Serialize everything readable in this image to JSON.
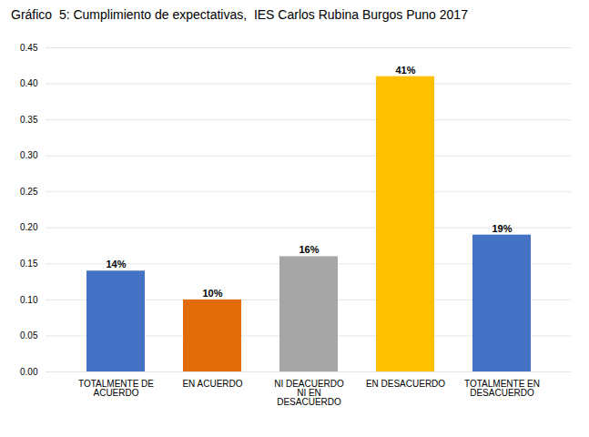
{
  "chart_data": {
    "type": "bar",
    "title": "Gráfico  5: Cumplimiento de expectativas,  IES Carlos Rubina Burgos Puno 2017",
    "categories": [
      "TOTALMENTE DE\nACUERDO",
      "EN ACUERDO",
      "NI DEACUERDO\nNI EN\nDESACUERDO",
      "EN DESACUERDO",
      "TOTALMENTE EN\nDESACUERDO"
    ],
    "values": [
      0.14,
      0.1,
      0.16,
      0.41,
      0.19
    ],
    "value_labels": [
      "14%",
      "10%",
      "16%",
      "41%",
      "19%"
    ],
    "data_labels": true,
    "colors": [
      "#4472C4",
      "#E36C0A",
      "#A6A6A6",
      "#FFC000",
      "#4472C4"
    ],
    "ylim": [
      0,
      0.45
    ],
    "yticks": [
      {
        "value": 0.0,
        "label": "0.00"
      },
      {
        "value": 0.05,
        "label": "0.05"
      },
      {
        "value": 0.1,
        "label": "0.10"
      },
      {
        "value": 0.15,
        "label": "0.15"
      },
      {
        "value": 0.2,
        "label": "0.20"
      },
      {
        "value": 0.25,
        "label": "0.25"
      },
      {
        "value": 0.3,
        "label": "0.30"
      },
      {
        "value": 0.35,
        "label": "0.35"
      },
      {
        "value": 0.4,
        "label": "0.40"
      },
      {
        "value": 0.45,
        "label": "0.45"
      }
    ],
    "grid": true
  }
}
